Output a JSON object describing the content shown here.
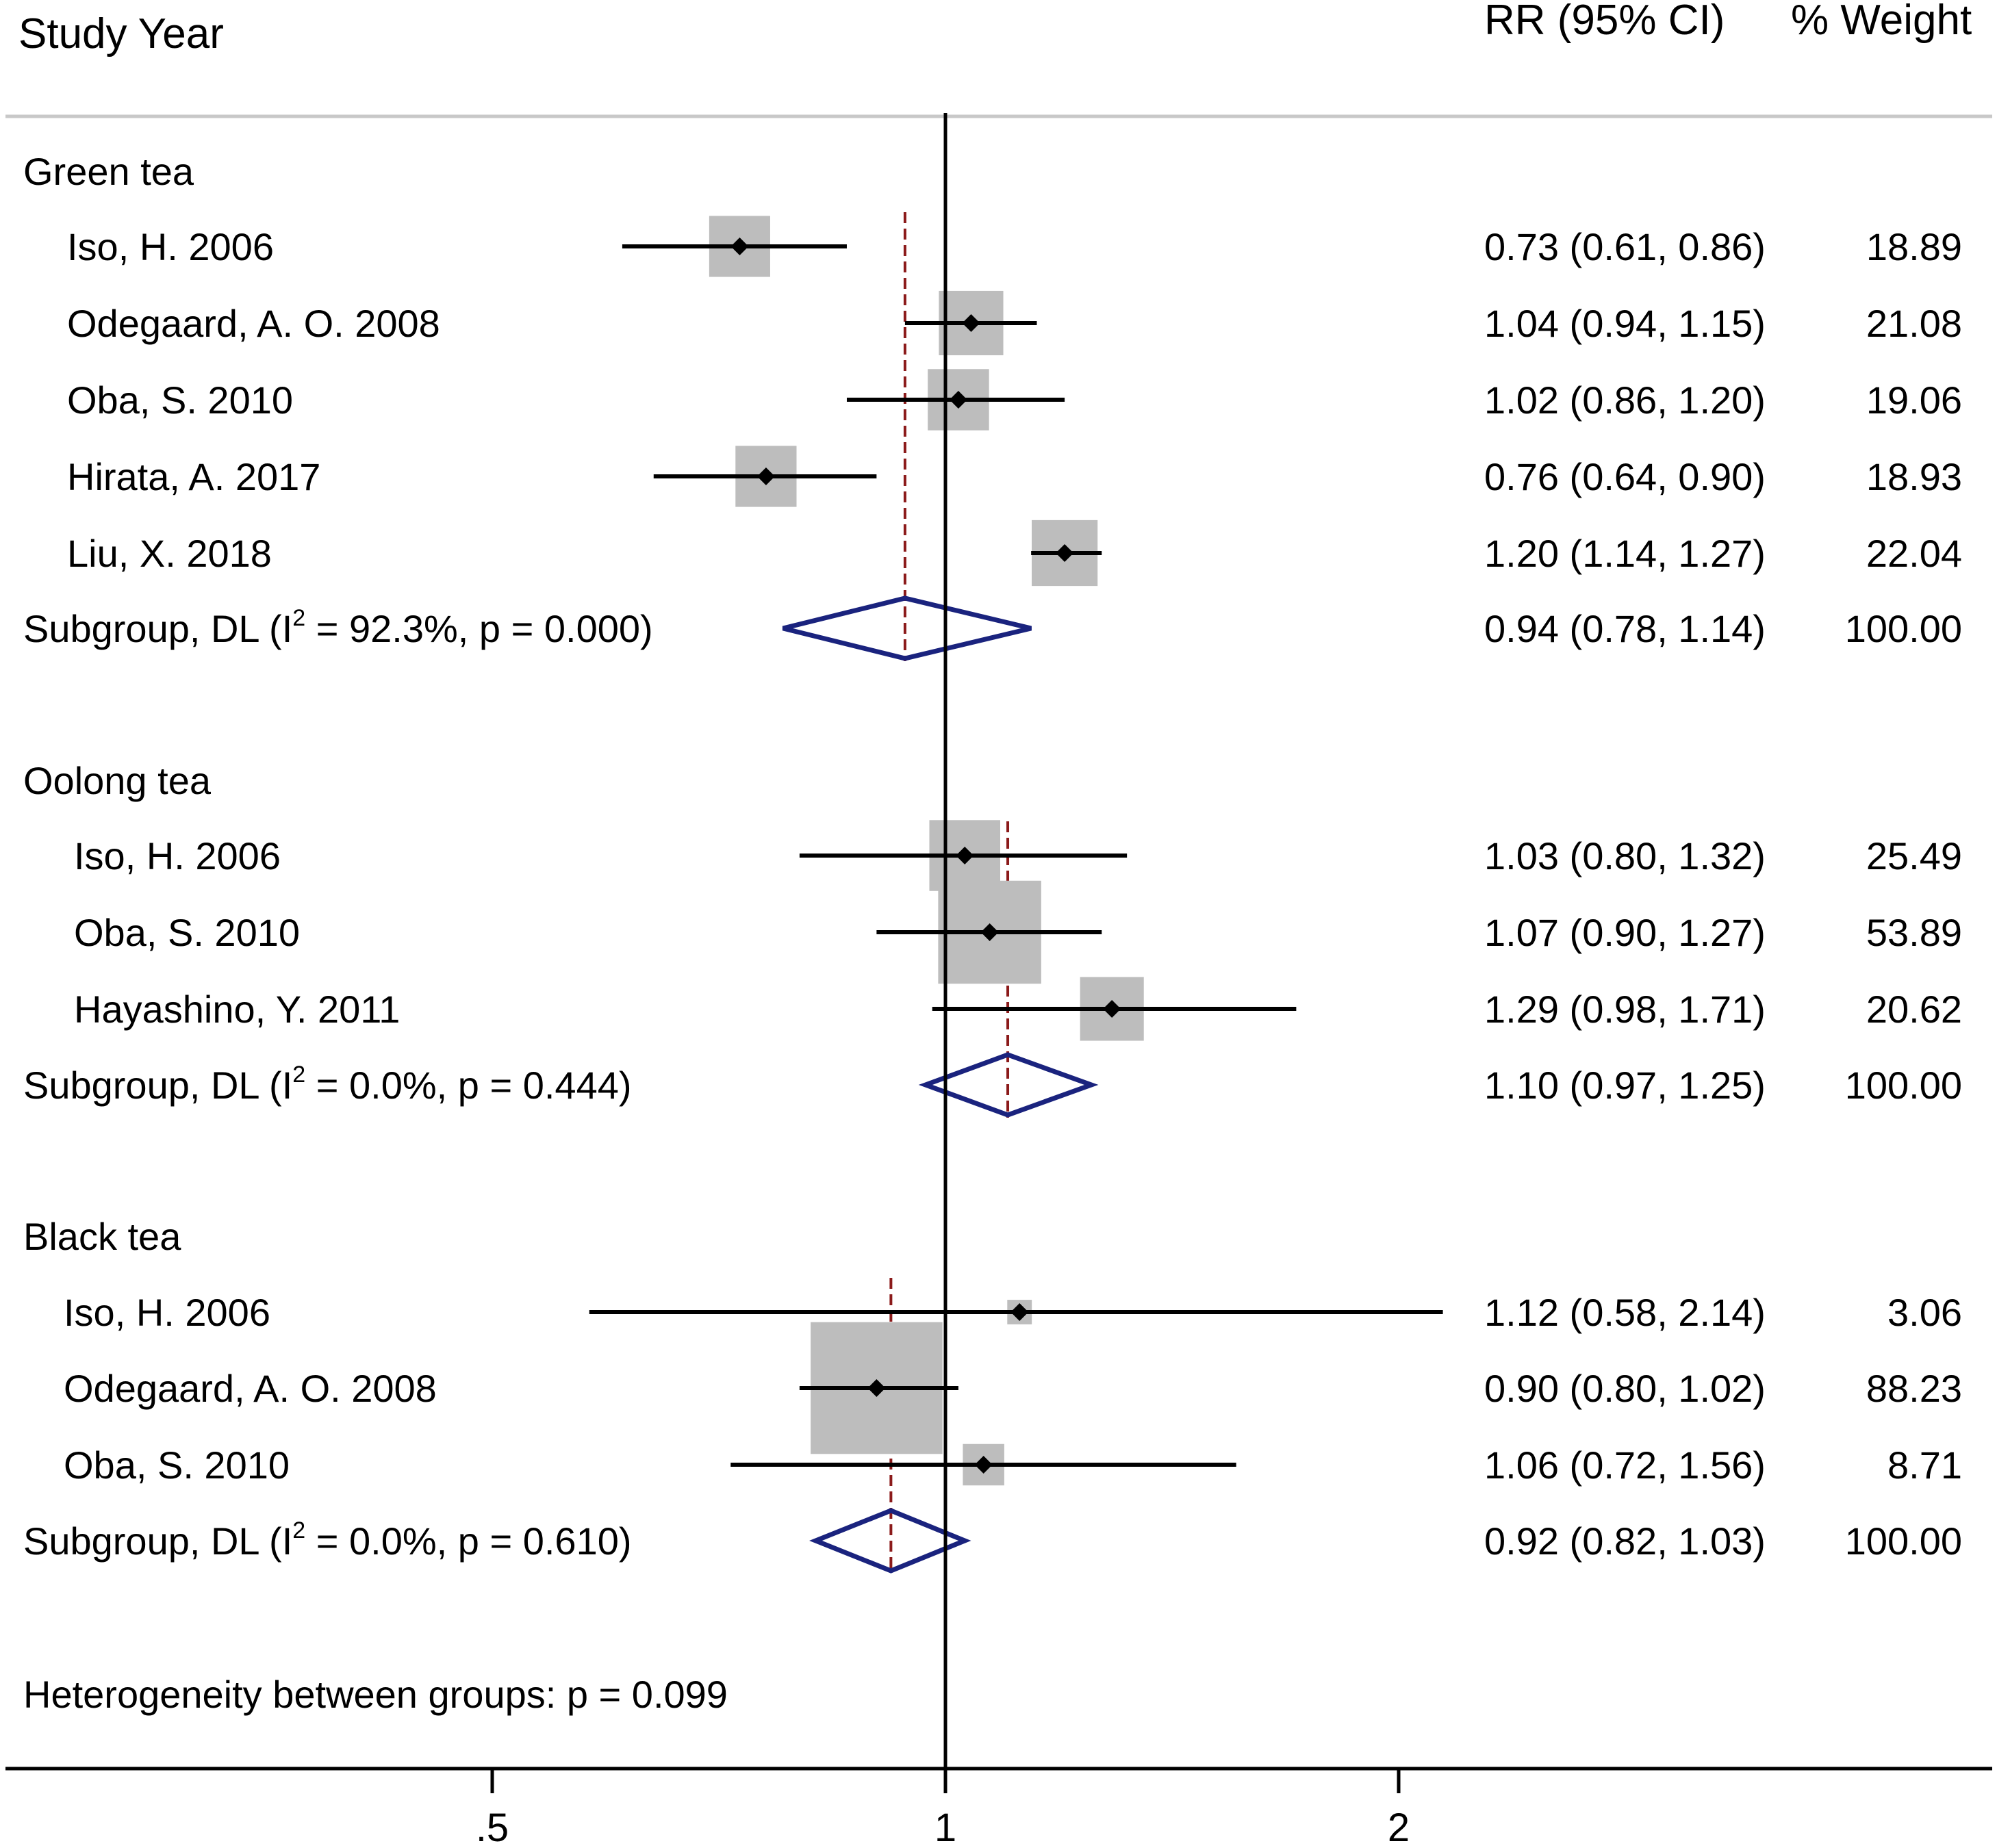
{
  "chart_data": {
    "type": "forest",
    "scale": "log",
    "xticks": [
      0.5,
      1,
      2
    ],
    "xtick_labels": [
      ".5",
      "1",
      "2"
    ],
    "null_line": 1,
    "header": {
      "study": "Study Year",
      "effect": "RR (95% CI)",
      "weight": "% Weight"
    },
    "groups": [
      {
        "name": "Green tea",
        "studies": [
          {
            "label": "Iso, H. 2006",
            "rr": 0.73,
            "lo": 0.61,
            "hi": 0.86,
            "weight": 18.89,
            "text": "0.73 (0.61, 0.86)",
            "wtext": "18.89"
          },
          {
            "label": "Odegaard, A. O. 2008",
            "rr": 1.04,
            "lo": 0.94,
            "hi": 1.15,
            "weight": 21.08,
            "text": "1.04 (0.94, 1.15)",
            "wtext": "21.08"
          },
          {
            "label": "Oba, S. 2010",
            "rr": 1.02,
            "lo": 0.86,
            "hi": 1.2,
            "weight": 19.06,
            "text": "1.02 (0.86, 1.20)",
            "wtext": "19.06"
          },
          {
            "label": "Hirata, A. 2017",
            "rr": 0.76,
            "lo": 0.64,
            "hi": 0.9,
            "weight": 18.93,
            "text": "0.76 (0.64, 0.90)",
            "wtext": "18.93"
          },
          {
            "label": "Liu, X. 2018",
            "rr": 1.2,
            "lo": 1.14,
            "hi": 1.27,
            "weight": 22.04,
            "text": "1.20 (1.14, 1.27)",
            "wtext": "22.04"
          }
        ],
        "subgroup": {
          "pre": "Subgroup, DL (I",
          "sup": "2",
          "post": " = 92.3%, p = 0.000)",
          "rr": 0.94,
          "lo": 0.78,
          "hi": 1.14,
          "text": "0.94 (0.78, 1.14)",
          "wtext": "100.00"
        }
      },
      {
        "name": "Oolong tea",
        "studies": [
          {
            "label": "Iso, H. 2006",
            "rr": 1.03,
            "lo": 0.8,
            "hi": 1.32,
            "weight": 25.49,
            "text": "1.03 (0.80, 1.32)",
            "wtext": "25.49"
          },
          {
            "label": "Oba, S. 2010",
            "rr": 1.07,
            "lo": 0.9,
            "hi": 1.27,
            "weight": 53.89,
            "text": "1.07 (0.90, 1.27)",
            "wtext": "53.89"
          },
          {
            "label": "Hayashino, Y. 2011",
            "rr": 1.29,
            "lo": 0.98,
            "hi": 1.71,
            "weight": 20.62,
            "text": "1.29 (0.98, 1.71)",
            "wtext": "20.62"
          }
        ],
        "subgroup": {
          "pre": "Subgroup, DL (I",
          "sup": "2",
          "post": " = 0.0%, p = 0.444)",
          "rr": 1.1,
          "lo": 0.97,
          "hi": 1.25,
          "text": "1.10 (0.97, 1.25)",
          "wtext": "100.00"
        }
      },
      {
        "name": "Black tea",
        "studies": [
          {
            "label": "Iso, H. 2006",
            "rr": 1.12,
            "lo": 0.58,
            "hi": 2.14,
            "weight": 3.06,
            "text": "1.12 (0.58, 2.14)",
            "wtext": "3.06"
          },
          {
            "label": "Odegaard, A. O. 2008",
            "rr": 0.9,
            "lo": 0.8,
            "hi": 1.02,
            "weight": 88.23,
            "text": "0.90 (0.80, 1.02)",
            "wtext": "88.23"
          },
          {
            "label": "Oba, S. 2010",
            "rr": 1.06,
            "lo": 0.72,
            "hi": 1.56,
            "weight": 8.71,
            "text": "1.06 (0.72, 1.56)",
            "wtext": "8.71"
          }
        ],
        "subgroup": {
          "pre": "Subgroup, DL (I",
          "sup": "2",
          "post": " = 0.0%, p = 0.610)",
          "rr": 0.92,
          "lo": 0.82,
          "hi": 1.03,
          "text": "0.92 (0.82, 1.03)",
          "wtext": "100.00"
        }
      }
    ],
    "footer": "Heterogeneity between groups: p = 0.099",
    "colors": {
      "box": "#bdbdbd",
      "ci_line": "#000000",
      "point": "#000000",
      "diamond": "#1a237e",
      "pooled_line": "#8b1a1a",
      "null_line": "#000000",
      "separator": "#c8c8c8"
    }
  }
}
